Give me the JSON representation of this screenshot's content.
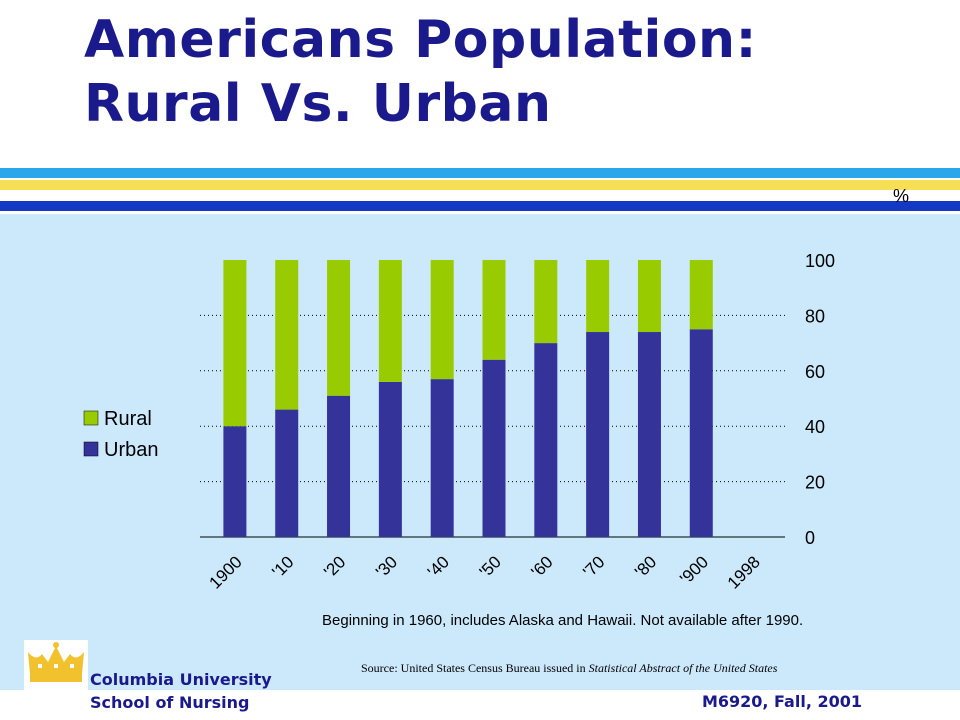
{
  "slide": {
    "title": "Americans Population:\nRural Vs. Urban",
    "note": "Beginning in 1960, includes Alaska and Hawaii.  Not available after 1990.",
    "source_prefix": "Source: United States Census Bureau issued in ",
    "source_italic": "Statistical Abstract of the United States",
    "footer": {
      "university": "Columbia University",
      "school": "School of Nursing",
      "course": "M6920, Fall, 2001"
    },
    "colors": {
      "title": "#1a1a8c",
      "stripe_blue_light": "#2aa7ea",
      "stripe_yellow": "#f6df55",
      "stripe_blue_dark": "#1438c4",
      "panel_bg": "#cce8fb",
      "logo": "#f2c22e"
    },
    "logo_icon": "crown-icon"
  },
  "chart_data": {
    "type": "bar",
    "stacked": true,
    "categories": [
      "1900",
      "'10",
      "'20",
      "'30",
      "'40",
      "'50",
      "'60",
      "'70",
      "'80",
      "'900",
      "1998"
    ],
    "series": [
      {
        "name": "Urban",
        "color": "#333399",
        "values": [
          40,
          46,
          51,
          56,
          57,
          64,
          70,
          74,
          74,
          75,
          null
        ]
      },
      {
        "name": "Rural",
        "color": "#99cc00",
        "values": [
          60,
          54,
          49,
          44,
          43,
          36,
          30,
          26,
          26,
          25,
          null
        ]
      }
    ],
    "y_ticks": [
      0,
      20,
      40,
      60,
      80,
      100
    ],
    "ylim": [
      0,
      100
    ],
    "y_axis_side": "right",
    "unit_label": "%",
    "grid": "dotted horizontal",
    "legend": {
      "position": "left",
      "entries": [
        "Rural",
        "Urban"
      ]
    }
  }
}
